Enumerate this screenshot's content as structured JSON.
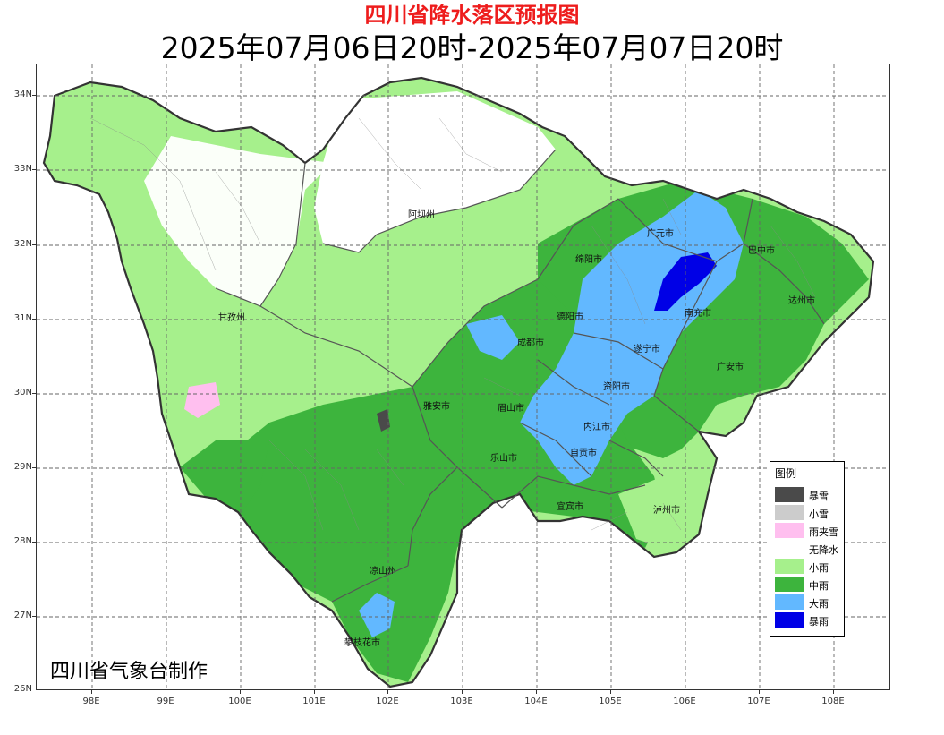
{
  "title": "四川省降水落区预报图",
  "subtitle": "2025年07月06日20时-2025年07月07日20时",
  "credit": "四川省气象台制作",
  "axes": {
    "lat_labels": [
      "34N",
      "33N",
      "32N",
      "31N",
      "30N",
      "29N",
      "28N",
      "27N",
      "26N"
    ],
    "lon_labels": [
      "98E",
      "99E",
      "100E",
      "101E",
      "102E",
      "103E",
      "104E",
      "105E",
      "106E",
      "107E",
      "108E"
    ]
  },
  "cities": [
    {
      "name": "阿坝州",
      "id": "aba"
    },
    {
      "name": "甘孜州",
      "id": "ganzi"
    },
    {
      "name": "广元市",
      "id": "guangyuan"
    },
    {
      "name": "巴中市",
      "id": "bazhong"
    },
    {
      "name": "绵阳市",
      "id": "mianyang"
    },
    {
      "name": "达州市",
      "id": "dazhou"
    },
    {
      "name": "德阳市",
      "id": "deyang"
    },
    {
      "name": "南充市",
      "id": "nanchong"
    },
    {
      "name": "成都市",
      "id": "chengdu"
    },
    {
      "name": "遂宁市",
      "id": "suining"
    },
    {
      "name": "广安市",
      "id": "guangan"
    },
    {
      "name": "雅安市",
      "id": "yaan"
    },
    {
      "name": "资阳市",
      "id": "ziyang"
    },
    {
      "name": "眉山市",
      "id": "meishan"
    },
    {
      "name": "内江市",
      "id": "neijiang"
    },
    {
      "name": "自贡市",
      "id": "zigong"
    },
    {
      "name": "乐山市",
      "id": "leshan"
    },
    {
      "name": "宜宾市",
      "id": "yibin"
    },
    {
      "name": "泸州市",
      "id": "luzhou"
    },
    {
      "name": "凉山州",
      "id": "liangshan"
    },
    {
      "name": "攀枝花市",
      "id": "panzhihua"
    }
  ],
  "legend": {
    "title": "图例",
    "items": [
      {
        "label": "暴雪",
        "color": "#4a4a4a"
      },
      {
        "label": "小雪",
        "color": "#cccccc"
      },
      {
        "label": "雨夹雪",
        "color": "#ffbfef"
      },
      {
        "label": "无降水",
        "color": "#ffffff"
      },
      {
        "label": "小雨",
        "color": "#a6f08c"
      },
      {
        "label": "中雨",
        "color": "#3db43d"
      },
      {
        "label": "大雨",
        "color": "#62b8ff"
      },
      {
        "label": "暴雨",
        "color": "#0000e6"
      }
    ]
  }
}
